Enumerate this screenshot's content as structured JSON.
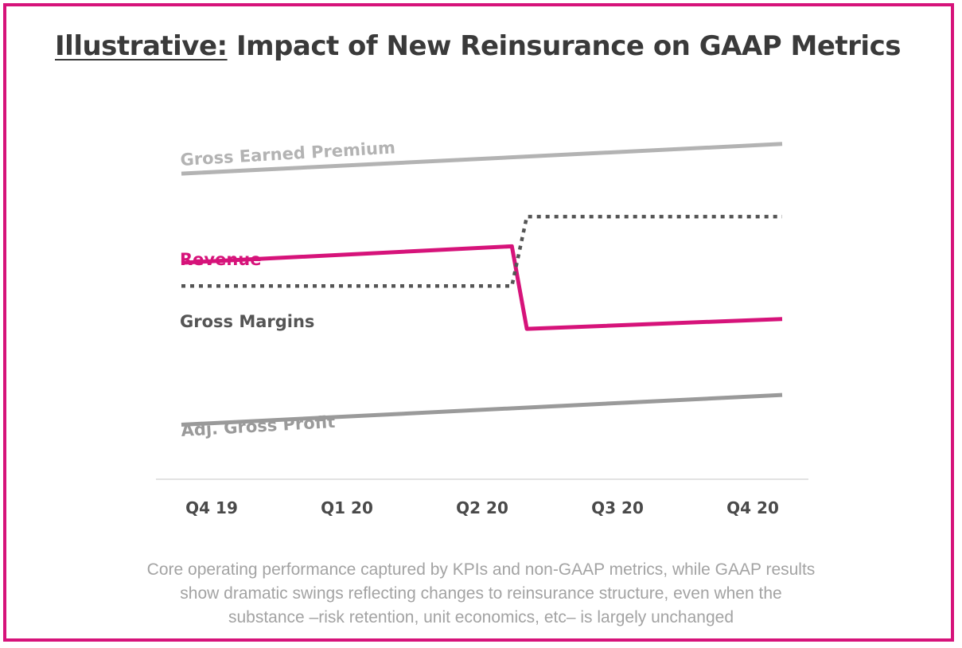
{
  "title": {
    "prefix": "Illustrative:",
    "main": "Impact of New Reinsurance on GAAP Metrics"
  },
  "colors": {
    "border": "#d6137a",
    "revenue": "#d6137a",
    "gross_earned_premium": "#b3b3b3",
    "adj_gross_profit": "#9a9a9a",
    "gross_margins": "#555555",
    "axis": "#d9d9d9",
    "tick_text": "#4a4a4a"
  },
  "chart_data": {
    "type": "line",
    "categories": [
      "Q4 19",
      "Q1 20",
      "Q2 20",
      "Q3 20",
      "Q4 20"
    ],
    "series": [
      {
        "name": "Gross Earned Premium",
        "color": "#b3b3b3",
        "style": "solid",
        "points": [
          [
            0,
            8.6
          ],
          [
            4,
            9.5
          ]
        ]
      },
      {
        "name": "Revenue",
        "color": "#d6137a",
        "style": "solid",
        "points": [
          [
            0,
            5.9
          ],
          [
            2.2,
            6.4
          ],
          [
            2.3,
            3.9
          ],
          [
            4,
            4.2
          ]
        ]
      },
      {
        "name": "Gross Margins",
        "color": "#555555",
        "style": "dotted",
        "points": [
          [
            0,
            5.2
          ],
          [
            2.2,
            5.2
          ],
          [
            2.3,
            7.3
          ],
          [
            4,
            7.3
          ]
        ]
      },
      {
        "name": "Adj. Gross Profit",
        "color": "#9a9a9a",
        "style": "solid",
        "points": [
          [
            0,
            1.0
          ],
          [
            4,
            1.9
          ]
        ]
      }
    ],
    "ylim": [
      0,
      10
    ],
    "grid": false,
    "legend": "inline labels"
  },
  "footnote": {
    "lines": [
      "Core operating performance captured by KPIs and non-GAAP metrics, while GAAP results",
      "show dramatic swings reflecting changes to reinsurance structure, even when the",
      "substance –risk retention, unit economics, etc– is largely unchanged"
    ]
  }
}
